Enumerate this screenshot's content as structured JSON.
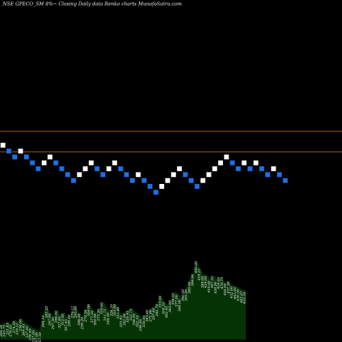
{
  "chart_data": {
    "type": "renko",
    "title": "NSE GPECO_SM 8%~ Closing Daily data Renko charts MunafaSutra.com",
    "colors": {
      "background": "#000000",
      "up_brick": "#ffffff",
      "down_brick": "#1e6fe6",
      "brick_border": "#000000",
      "reference_lines": "#b5651d",
      "volume_fill": "#063306",
      "volume_outline": "#000000",
      "price_labels": "#ffffff"
    },
    "bricks": [
      {
        "d": "up"
      },
      {
        "d": "down"
      },
      {
        "d": "down"
      },
      {
        "d": "up"
      },
      {
        "d": "down"
      },
      {
        "d": "down"
      },
      {
        "d": "down"
      },
      {
        "d": "up"
      },
      {
        "d": "up"
      },
      {
        "d": "down"
      },
      {
        "d": "down"
      },
      {
        "d": "down"
      },
      {
        "d": "down"
      },
      {
        "d": "up"
      },
      {
        "d": "up"
      },
      {
        "d": "up"
      },
      {
        "d": "down"
      },
      {
        "d": "down"
      },
      {
        "d": "up"
      },
      {
        "d": "up"
      },
      {
        "d": "down"
      },
      {
        "d": "down"
      },
      {
        "d": "down"
      },
      {
        "d": "up"
      },
      {
        "d": "down"
      },
      {
        "d": "down"
      },
      {
        "d": "down"
      },
      {
        "d": "up"
      },
      {
        "d": "up"
      },
      {
        "d": "up"
      },
      {
        "d": "up"
      },
      {
        "d": "down"
      },
      {
        "d": "down"
      },
      {
        "d": "down"
      },
      {
        "d": "up"
      },
      {
        "d": "up"
      },
      {
        "d": "up"
      },
      {
        "d": "up"
      },
      {
        "d": "up"
      },
      {
        "d": "down"
      },
      {
        "d": "down"
      },
      {
        "d": "up"
      },
      {
        "d": "down"
      },
      {
        "d": "up"
      },
      {
        "d": "down"
      },
      {
        "d": "down"
      },
      {
        "d": "up"
      },
      {
        "d": "down"
      },
      {
        "d": "down"
      }
    ],
    "reference_lines": [
      {
        "label": "upper"
      },
      {
        "label": "lower"
      }
    ],
    "volume_labels": [
      "269.50",
      "245.72",
      "251.63",
      "276.65",
      "274.50",
      "250.22",
      "236.00",
      "264.43",
      "237.60",
      "236.69",
      "247.00",
      "267.00",
      "267.50",
      "264.10",
      "281.23",
      "247.00",
      "297.50",
      "266.00",
      "327.00",
      "312.60",
      "307.45",
      "290.00",
      "270.12",
      "295.00",
      "298.00",
      "256.20",
      "279.38",
      "264.00",
      "277.50",
      "300.00",
      "275.50",
      "310.60",
      "311.75",
      "346.00",
      "326.50",
      "323.00",
      "315.40",
      "331.62",
      "341.00",
      "320.45",
      "333.75",
      "296.00",
      "302.50",
      "296.00",
      "330.00",
      "343.00",
      "271.00",
      "287.60",
      "282.70",
      "310.00",
      "358.33",
      "362.45",
      "363.00",
      "356.00",
      "377.00",
      "380.00",
      "390.00",
      "395.85",
      "389.00",
      "399.00",
      "442.00",
      "418.21",
      "399.00",
      "424.00",
      "410.00",
      "467.50",
      "458.00",
      "454.00",
      "476.73",
      "444.09",
      "437.50",
      "452.00",
      "443.00",
      "430.50",
      "445.67",
      "433.59"
    ],
    "volume_profile": [
      0.16,
      0.18,
      0.2,
      0.18,
      0.22,
      0.2,
      0.24,
      0.19,
      0.17,
      0.14,
      0.12,
      0.1,
      0.28,
      0.38,
      0.3,
      0.26,
      0.33,
      0.27,
      0.3,
      0.24,
      0.29,
      0.38,
      0.3,
      0.26,
      0.34,
      0.4,
      0.33,
      0.3,
      0.35,
      0.42,
      0.35,
      0.31,
      0.4,
      0.37,
      0.28,
      0.3,
      0.33,
      0.35,
      0.3,
      0.28,
      0.24,
      0.28,
      0.34,
      0.36,
      0.4,
      0.49,
      0.42,
      0.38,
      0.44,
      0.52,
      0.5,
      0.45,
      0.56,
      0.64,
      0.72,
      0.86,
      0.78,
      0.7,
      0.7,
      0.65,
      0.7,
      0.64,
      0.69,
      0.62,
      0.64,
      0.59,
      0.58,
      0.56,
      0.54,
      0.53
    ]
  }
}
